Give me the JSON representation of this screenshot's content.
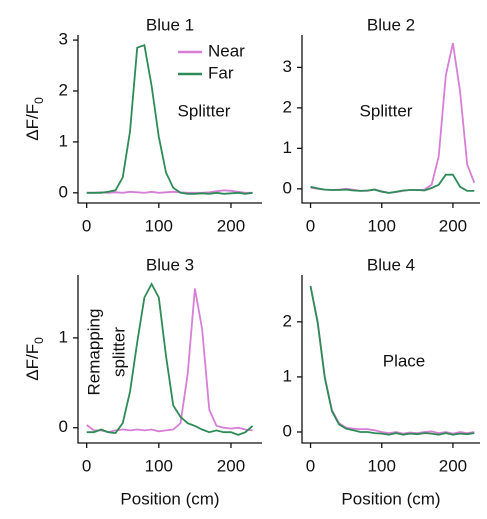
{
  "chart_data": [
    {
      "type": "line",
      "title": "Blue 1",
      "annotation": [
        "Splitter"
      ],
      "legend": "upper right",
      "ylabel": {
        "text": "ΔF/F",
        "sub": "0"
      },
      "x": [
        0,
        10,
        20,
        30,
        40,
        50,
        60,
        70,
        80,
        90,
        100,
        110,
        120,
        130,
        140,
        150,
        160,
        170,
        180,
        190,
        200,
        210,
        220,
        230
      ],
      "xlim": [
        -12,
        243
      ],
      "xticks": [
        0,
        100,
        200
      ],
      "ylim": [
        -0.2,
        3.1
      ],
      "yticks": [
        0,
        1,
        2,
        3
      ],
      "series": [
        {
          "name": "Near",
          "color": "#d67fd6",
          "values": [
            0,
            0,
            0.01,
            0,
            0.01,
            0,
            0.02,
            0.01,
            0,
            0.02,
            0,
            0.01,
            0.02,
            0.01,
            0,
            0,
            0,
            0.01,
            0.03,
            0.05,
            0.04,
            0.02,
            0,
            0
          ]
        },
        {
          "name": "Far",
          "color": "#2e8b57",
          "values": [
            0,
            0,
            0,
            0.02,
            0.05,
            0.3,
            1.2,
            2.85,
            2.9,
            2.1,
            1.1,
            0.4,
            0.1,
            0,
            -0.02,
            -0.02,
            -0.01,
            -0.02,
            0,
            -0.02,
            -0.01,
            0,
            -0.02,
            0
          ]
        }
      ]
    },
    {
      "type": "line",
      "title": "Blue 2",
      "annotation": [
        "Splitter"
      ],
      "x": [
        0,
        10,
        20,
        30,
        40,
        50,
        60,
        70,
        80,
        90,
        100,
        110,
        120,
        130,
        140,
        150,
        160,
        170,
        180,
        190,
        200,
        210,
        220,
        230
      ],
      "xlim": [
        -12,
        238
      ],
      "xticks": [
        0,
        100,
        200
      ],
      "ylim": [
        -0.35,
        3.8
      ],
      "yticks": [
        0,
        1,
        2,
        3
      ],
      "series": [
        {
          "color": "#d67fd6",
          "values": [
            0.03,
            0,
            -0.02,
            -0.03,
            -0.02,
            0,
            -0.02,
            -0.05,
            -0.05,
            -0.02,
            -0.06,
            -0.1,
            -0.08,
            -0.05,
            -0.03,
            -0.03,
            -0.02,
            0.1,
            0.8,
            2.8,
            3.6,
            2.4,
            0.6,
            0.15
          ]
        },
        {
          "color": "#2e8b57",
          "values": [
            0.05,
            0.01,
            -0.02,
            -0.03,
            -0.03,
            -0.02,
            -0.04,
            -0.05,
            -0.04,
            -0.02,
            -0.07,
            -0.1,
            -0.07,
            -0.04,
            -0.03,
            -0.03,
            -0.04,
            0.02,
            0.1,
            0.35,
            0.35,
            0.05,
            -0.05,
            -0.05
          ]
        }
      ]
    },
    {
      "type": "line",
      "title": "Blue 3",
      "annotation": [
        "Remapping",
        "splitter"
      ],
      "ylabel": {
        "text": "ΔF/F",
        "sub": "0"
      },
      "xlabel": "Position (cm)",
      "x": [
        0,
        10,
        20,
        30,
        40,
        50,
        60,
        70,
        80,
        90,
        100,
        110,
        120,
        130,
        140,
        150,
        160,
        170,
        180,
        190,
        200,
        210,
        220,
        230
      ],
      "xlim": [
        -12,
        243
      ],
      "xticks": [
        0,
        100,
        200
      ],
      "ylim": [
        -0.17,
        1.7
      ],
      "yticks": [
        0,
        1
      ],
      "series": [
        {
          "color": "#d67fd6",
          "values": [
            0.03,
            -0.03,
            -0.03,
            -0.05,
            -0.03,
            -0.02,
            -0.03,
            -0.02,
            -0.03,
            -0.02,
            -0.04,
            -0.03,
            -0.02,
            0.05,
            0.6,
            1.55,
            1.1,
            0.2,
            0.02,
            0,
            -0.01,
            0,
            -0.02,
            -0.03
          ]
        },
        {
          "color": "#2e8b57",
          "values": [
            -0.05,
            -0.05,
            -0.02,
            -0.05,
            -0.06,
            0.05,
            0.4,
            0.95,
            1.45,
            1.6,
            1.45,
            0.8,
            0.25,
            0.12,
            0.05,
            0.02,
            -0.02,
            -0.05,
            -0.03,
            -0.05,
            -0.05,
            -0.08,
            -0.05,
            0.02
          ]
        }
      ]
    },
    {
      "type": "line",
      "title": "Blue 4",
      "annotation": [
        "Place"
      ],
      "xlabel": "Position (cm)",
      "x": [
        0,
        10,
        20,
        30,
        40,
        50,
        60,
        70,
        80,
        90,
        100,
        110,
        120,
        130,
        140,
        150,
        160,
        170,
        180,
        190,
        200,
        210,
        220,
        230
      ],
      "xlim": [
        -12,
        238
      ],
      "xticks": [
        0,
        100,
        200
      ],
      "ylim": [
        -0.2,
        2.85
      ],
      "yticks": [
        0,
        1,
        2
      ],
      "series": [
        {
          "color": "#d67fd6",
          "values": [
            2.65,
            2.0,
            1.0,
            0.4,
            0.16,
            0.08,
            0.06,
            0.05,
            0.05,
            0.03,
            0,
            -0.02,
            0,
            -0.03,
            -0.01,
            -0.02,
            0,
            0.01,
            -0.02,
            0,
            -0.03,
            0,
            -0.02,
            0
          ]
        },
        {
          "color": "#2e8b57",
          "values": [
            2.65,
            1.98,
            0.98,
            0.38,
            0.14,
            0.06,
            0.03,
            0,
            0,
            -0.02,
            -0.03,
            -0.05,
            -0.02,
            -0.05,
            -0.03,
            -0.04,
            -0.02,
            -0.03,
            -0.05,
            -0.02,
            -0.05,
            -0.03,
            -0.04,
            -0.02
          ]
        }
      ]
    }
  ]
}
